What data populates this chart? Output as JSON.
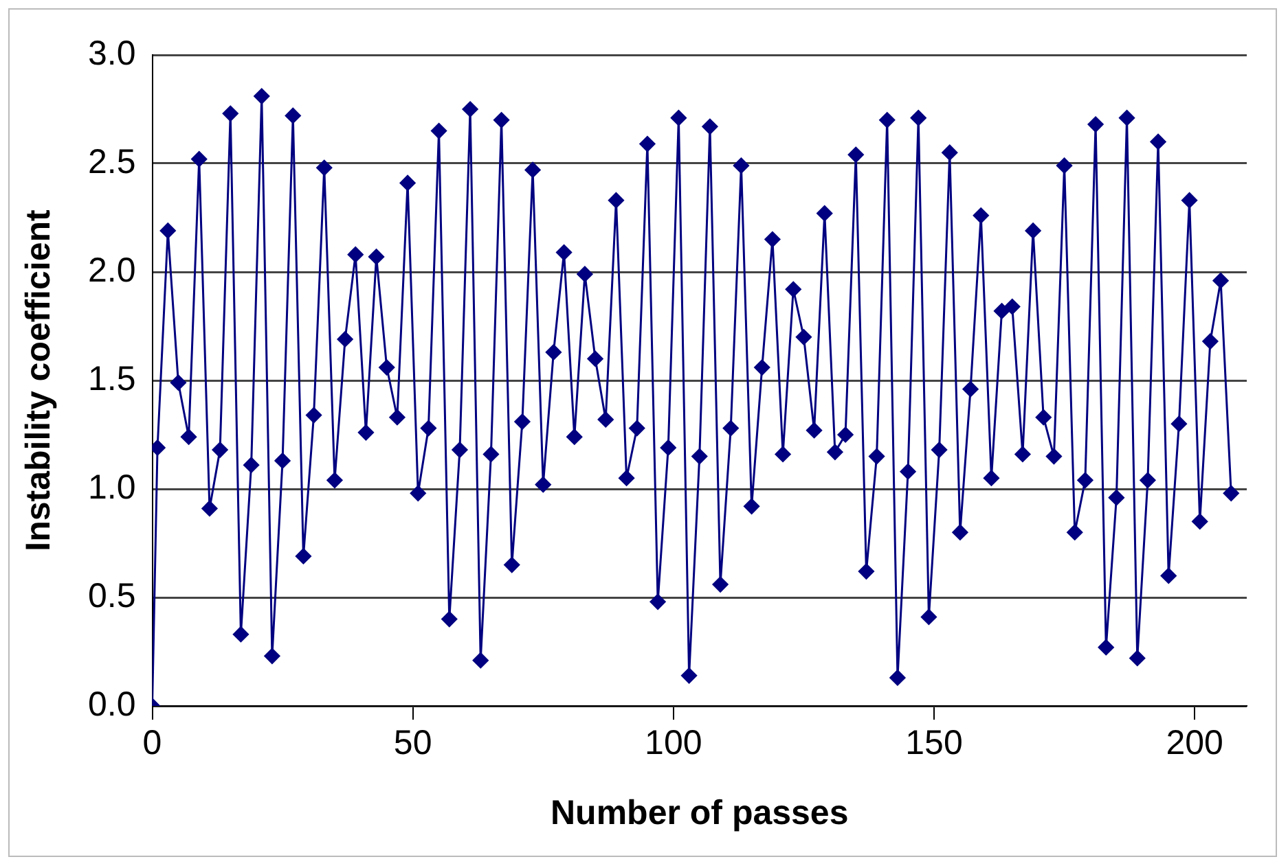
{
  "chart_data": {
    "type": "line",
    "xlabel": "Number of passes",
    "ylabel": "Instability coefficient",
    "x": [
      0,
      1,
      3,
      5,
      7,
      9,
      11,
      13,
      15,
      17,
      19,
      21,
      23,
      25,
      27,
      29,
      31,
      33,
      35,
      37,
      39,
      41,
      43,
      45,
      47,
      49,
      51,
      53,
      55,
      57,
      59,
      61,
      63,
      65,
      67,
      69,
      71,
      73,
      75,
      77,
      79,
      81,
      83,
      85,
      87,
      89,
      91,
      93,
      95,
      97,
      99,
      101,
      103,
      105,
      107,
      109,
      111,
      113,
      115,
      117,
      119,
      121,
      123,
      125,
      127,
      129,
      131,
      133,
      135,
      137,
      139,
      141,
      143,
      145,
      147,
      149,
      151,
      153,
      155,
      157,
      159,
      161,
      163,
      165,
      167,
      169,
      171,
      173,
      175,
      177,
      179,
      181,
      183,
      185,
      187,
      189,
      191,
      193,
      195,
      197,
      199,
      201,
      203,
      205,
      207
    ],
    "series": [
      {
        "color": "#000080",
        "values": [
          0,
          1.19,
          2.19,
          1.49,
          1.24,
          2.52,
          0.91,
          1.18,
          2.73,
          0.33,
          1.11,
          2.81,
          0.23,
          1.13,
          2.72,
          0.69,
          1.34,
          2.48,
          1.04,
          1.69,
          2.08,
          1.26,
          2.07,
          1.56,
          1.33,
          2.41,
          0.98,
          1.28,
          2.65,
          0.4,
          1.18,
          2.75,
          0.21,
          1.16,
          2.7,
          0.65,
          1.31,
          2.47,
          1.02,
          1.63,
          2.09,
          1.24,
          1.99,
          1.6,
          1.32,
          2.33,
          1.05,
          1.28,
          2.59,
          0.48,
          1.19,
          2.71,
          0.14,
          1.15,
          2.67,
          0.56,
          1.28,
          2.49,
          0.92,
          1.56,
          2.15,
          1.16,
          1.92,
          1.7,
          1.27,
          2.27,
          1.17,
          1.25,
          2.54,
          0.62,
          1.15,
          2.7,
          0.13,
          1.08,
          2.71,
          0.41,
          1.18,
          2.55,
          0.8,
          1.46,
          2.26,
          1.05,
          1.82,
          1.84,
          1.16,
          2.19,
          1.33,
          1.15,
          2.49,
          0.8,
          1.04,
          2.68,
          0.27,
          0.96,
          2.71,
          0.22,
          1.04,
          2.6,
          0.6,
          1.3,
          2.33,
          0.85,
          1.68,
          1.96,
          0.98
        ]
      }
    ],
    "xlim": [
      0,
      210
    ],
    "xticks": [
      0,
      50,
      100,
      150,
      200
    ],
    "ylim": [
      0,
      3
    ],
    "yticks": [
      {
        "value": 0,
        "label": "0.0"
      },
      {
        "value": 0.5,
        "label": "0.5"
      },
      {
        "value": 1,
        "label": "1.0"
      },
      {
        "value": 1.5,
        "label": "1.5"
      },
      {
        "value": 2,
        "label": "2.0"
      },
      {
        "value": 2.5,
        "label": "2.5"
      },
      {
        "value": 3,
        "label": "3.0"
      }
    ],
    "grid": "y",
    "legend": false,
    "marker": "diamond",
    "line_style": "solid"
  }
}
